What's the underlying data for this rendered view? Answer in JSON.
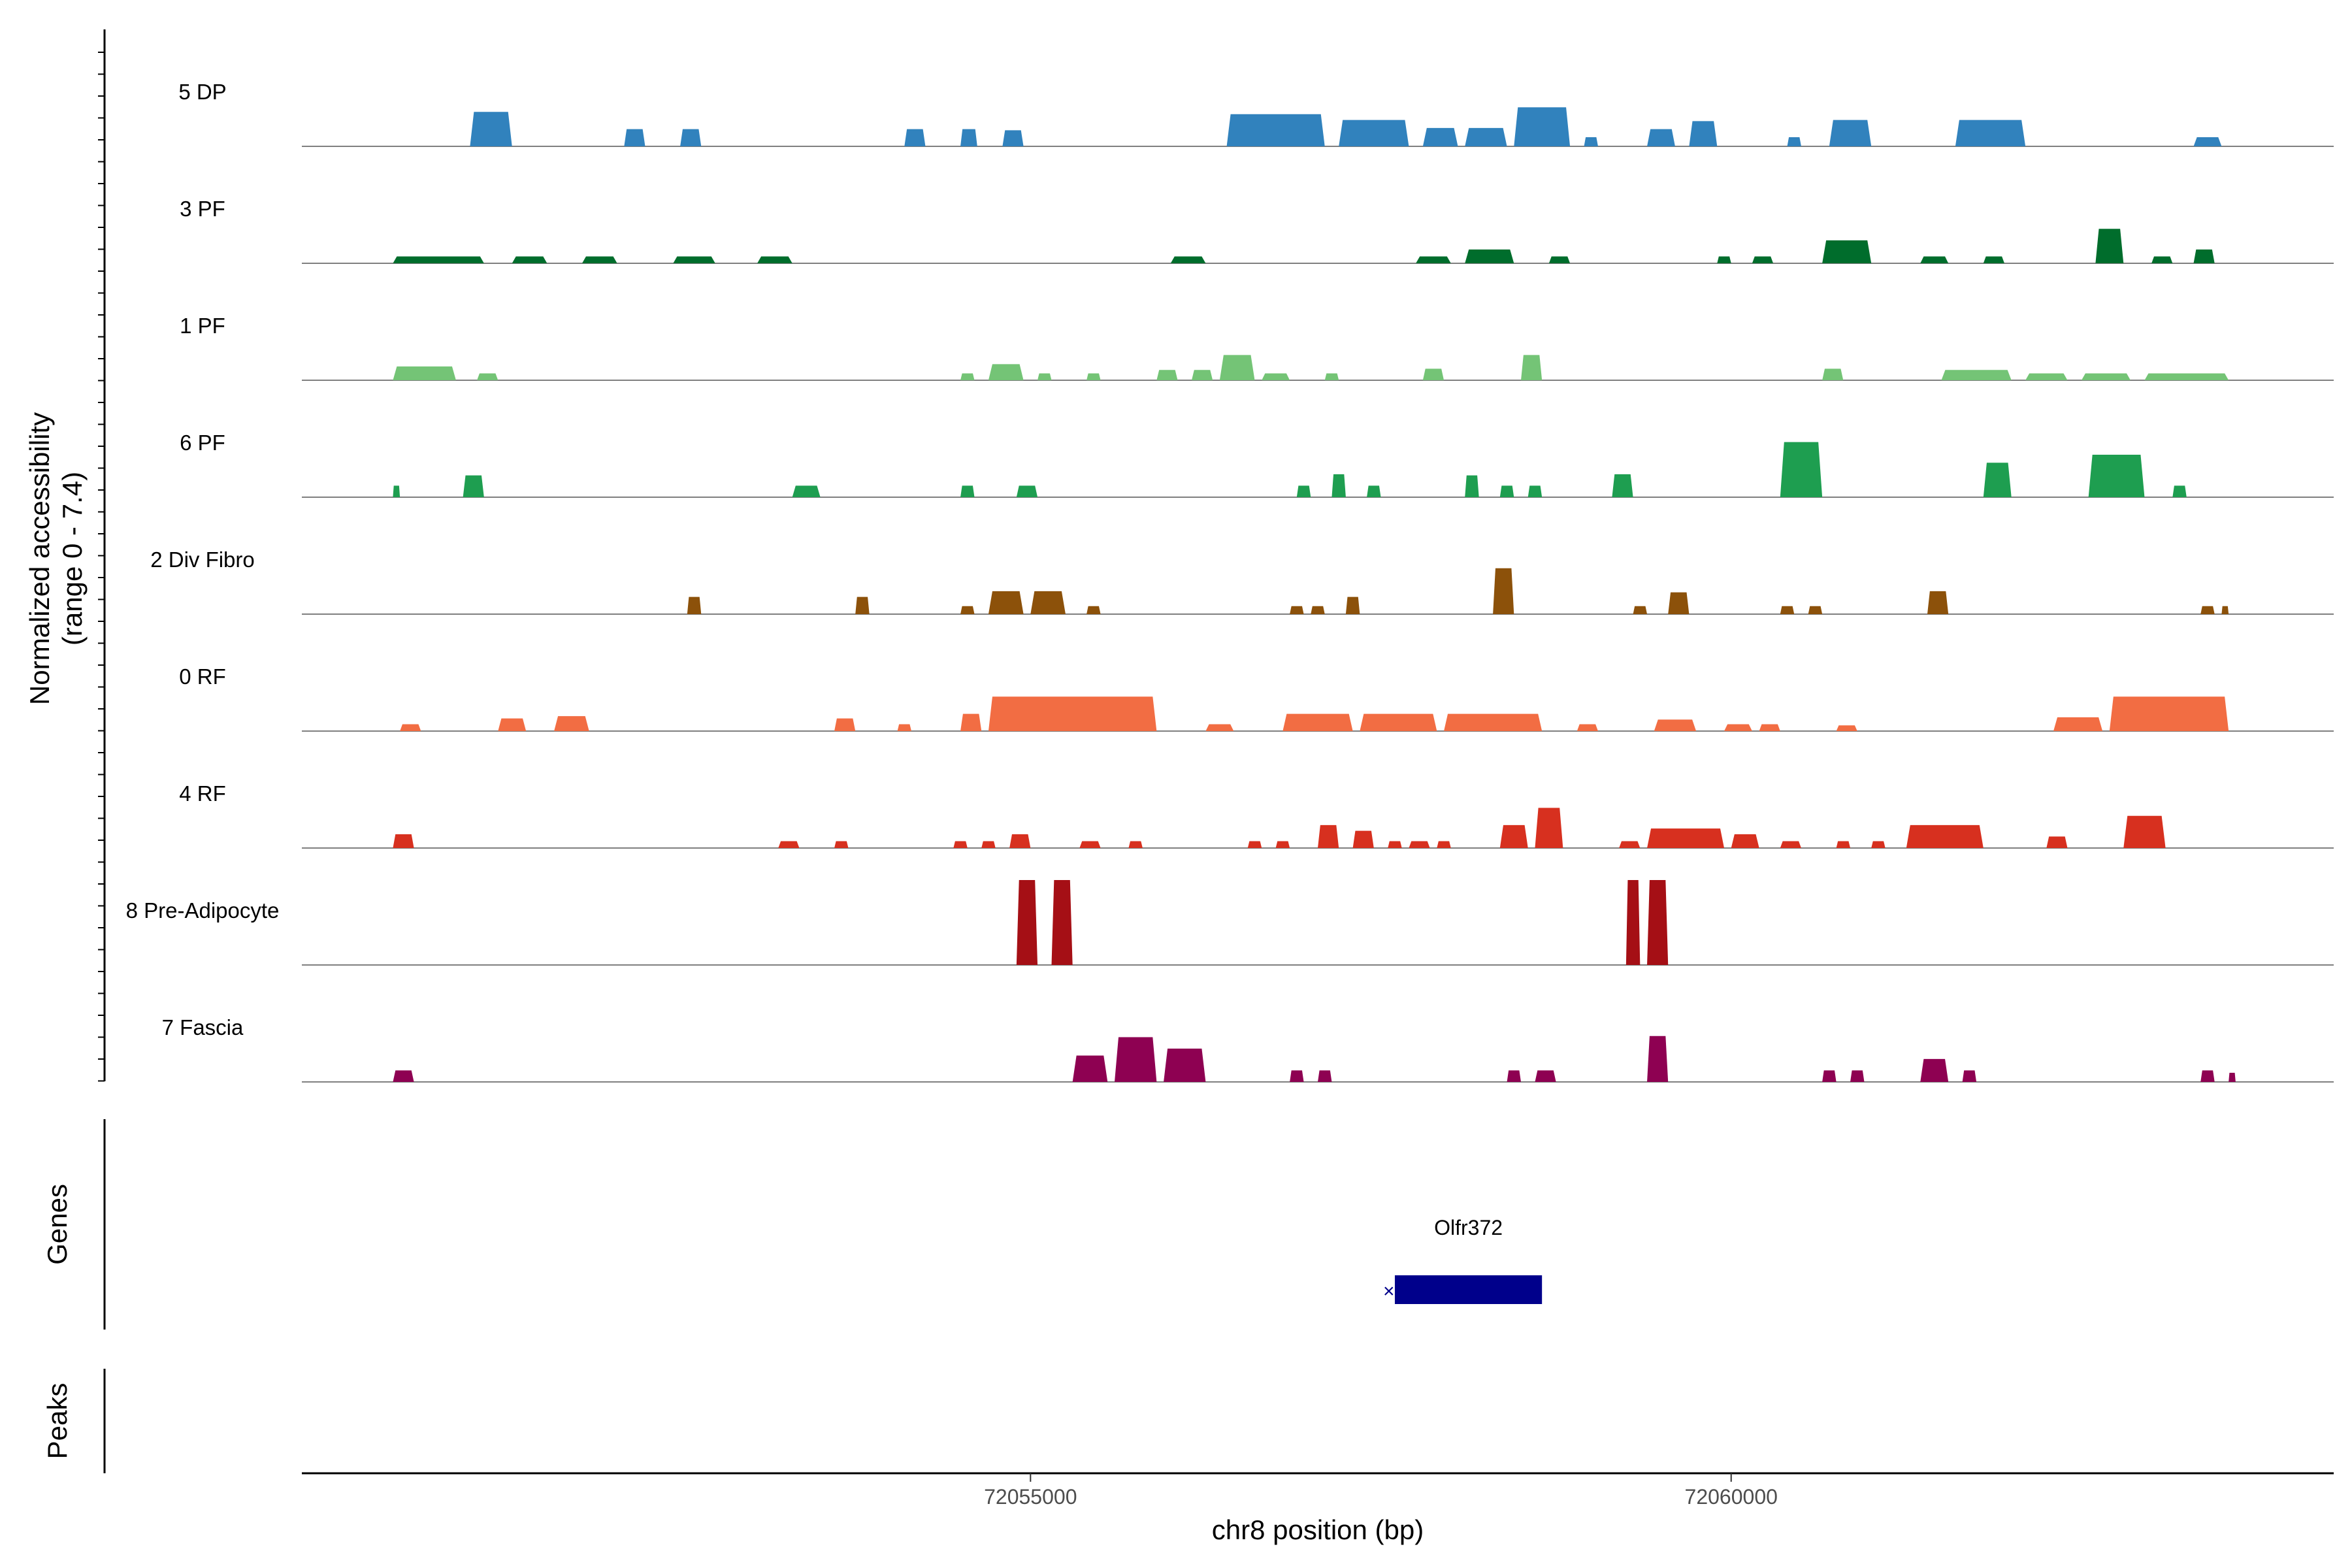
{
  "chart_data": {
    "type": "area",
    "title": "",
    "ylabel": "Normalized accessibility\n(range 0 - 7.4)",
    "xlabel": "chr8 position (bp)",
    "xlim": [
      72049800,
      72064300
    ],
    "ylim": [
      0,
      7.4
    ],
    "x_ticks": [
      72055000,
      72060000
    ],
    "x_tick_labels": [
      "72055000",
      "72060000"
    ],
    "tracks": [
      {
        "name": "5 DP",
        "color": "#3182bd",
        "peaks": [
          [
            72051000,
            72051300,
            3.0
          ],
          [
            72052100,
            72052250,
            1.5
          ],
          [
            72052500,
            72052650,
            1.5
          ],
          [
            72054100,
            72054250,
            1.5
          ],
          [
            72054500,
            72054620,
            1.5
          ],
          [
            72054800,
            72054950,
            1.4
          ],
          [
            72056400,
            72057100,
            2.8
          ],
          [
            72057200,
            72057700,
            2.3
          ],
          [
            72057800,
            72058050,
            1.6
          ],
          [
            72058100,
            72058400,
            1.6
          ],
          [
            72058450,
            72058850,
            3.4
          ],
          [
            72058950,
            72059050,
            0.8
          ],
          [
            72059400,
            72059600,
            1.5
          ],
          [
            72059700,
            72059900,
            2.2
          ],
          [
            72060400,
            72060500,
            0.8
          ],
          [
            72060700,
            72061000,
            2.3
          ],
          [
            72061600,
            72062100,
            2.3
          ],
          [
            72063300,
            72063500,
            0.8
          ]
        ]
      },
      {
        "name": "3 PF",
        "color": "#006d2c",
        "peaks": [
          [
            72050450,
            72051100,
            0.6
          ],
          [
            72051300,
            72051550,
            0.6
          ],
          [
            72051800,
            72052050,
            0.6
          ],
          [
            72052450,
            72052750,
            0.6
          ],
          [
            72053050,
            72053300,
            0.6
          ],
          [
            72056000,
            72056250,
            0.6
          ],
          [
            72057750,
            72058000,
            0.6
          ],
          [
            72058100,
            72058450,
            1.2
          ],
          [
            72058700,
            72058850,
            0.6
          ],
          [
            72059900,
            72060000,
            0.6
          ],
          [
            72060150,
            72060300,
            0.6
          ],
          [
            72060650,
            72061000,
            2.0
          ],
          [
            72061350,
            72061550,
            0.6
          ],
          [
            72061800,
            72061950,
            0.6
          ],
          [
            72062600,
            72062800,
            3.0
          ],
          [
            72063000,
            72063150,
            0.6
          ],
          [
            72063300,
            72063450,
            1.2
          ]
        ]
      },
      {
        "name": "1 PF",
        "color": "#74c476",
        "peaks": [
          [
            72050450,
            72050900,
            1.2
          ],
          [
            72051050,
            72051200,
            0.6
          ],
          [
            72054500,
            72054600,
            0.6
          ],
          [
            72054700,
            72054950,
            1.4
          ],
          [
            72055050,
            72055150,
            0.6
          ],
          [
            72055400,
            72055500,
            0.6
          ],
          [
            72055900,
            72056050,
            0.9
          ],
          [
            72056150,
            72056300,
            0.9
          ],
          [
            72056350,
            72056600,
            2.2
          ],
          [
            72056650,
            72056850,
            0.6
          ],
          [
            72057100,
            72057200,
            0.6
          ],
          [
            72057800,
            72057950,
            1.0
          ],
          [
            72058500,
            72058650,
            2.2
          ],
          [
            72060650,
            72060800,
            1.0
          ],
          [
            72061500,
            72062000,
            0.9
          ],
          [
            72062100,
            72062400,
            0.6
          ],
          [
            72062500,
            72062850,
            0.6
          ],
          [
            72062950,
            72063550,
            0.6
          ]
        ]
      },
      {
        "name": "6 PF",
        "color": "#1e9e50",
        "peaks": [
          [
            72050450,
            72050500,
            1.0
          ],
          [
            72050950,
            72051100,
            1.9
          ],
          [
            72053300,
            72053500,
            1.0
          ],
          [
            72054500,
            72054600,
            1.0
          ],
          [
            72054900,
            72055050,
            1.0
          ],
          [
            72056900,
            72057000,
            1.0
          ],
          [
            72057150,
            72057250,
            2.0
          ],
          [
            72057400,
            72057500,
            1.0
          ],
          [
            72058100,
            72058200,
            1.9
          ],
          [
            72058350,
            72058450,
            1.0
          ],
          [
            72058550,
            72058650,
            1.0
          ],
          [
            72059150,
            72059300,
            2.0
          ],
          [
            72060350,
            72060650,
            4.8
          ],
          [
            72061800,
            72062000,
            3.0
          ],
          [
            72062550,
            72062950,
            3.7
          ],
          [
            72063150,
            72063250,
            1.0
          ]
        ]
      },
      {
        "name": "2 Div Fibro",
        "color": "#8c510a",
        "peaks": [
          [
            72052550,
            72052650,
            1.5
          ],
          [
            72053750,
            72053850,
            1.5
          ],
          [
            72054500,
            72054600,
            0.7
          ],
          [
            72054700,
            72054950,
            2.0
          ],
          [
            72055000,
            72055250,
            2.0
          ],
          [
            72055400,
            72055500,
            0.7
          ],
          [
            72056850,
            72056950,
            0.7
          ],
          [
            72057000,
            72057100,
            0.7
          ],
          [
            72057250,
            72057350,
            1.5
          ],
          [
            72058300,
            72058450,
            4.0
          ],
          [
            72059300,
            72059400,
            0.7
          ],
          [
            72059550,
            72059700,
            1.9
          ],
          [
            72060350,
            72060450,
            0.7
          ],
          [
            72060550,
            72060650,
            0.7
          ],
          [
            72061400,
            72061550,
            2.0
          ],
          [
            72063350,
            72063450,
            0.7
          ],
          [
            72063500,
            72063550,
            0.7
          ]
        ]
      },
      {
        "name": "0 RF",
        "color": "#f26d43",
        "peaks": [
          [
            72050500,
            72050650,
            0.6
          ],
          [
            72051200,
            72051400,
            1.1
          ],
          [
            72051600,
            72051850,
            1.3
          ],
          [
            72053600,
            72053750,
            1.1
          ],
          [
            72054050,
            72054150,
            0.6
          ],
          [
            72054500,
            72054650,
            1.5
          ],
          [
            72054700,
            72055900,
            3.0
          ],
          [
            72056250,
            72056450,
            0.6
          ],
          [
            72056800,
            72057300,
            1.5
          ],
          [
            72057350,
            72057900,
            1.5
          ],
          [
            72057950,
            72058650,
            1.5
          ],
          [
            72058900,
            72059050,
            0.6
          ],
          [
            72059450,
            72059750,
            1.0
          ],
          [
            72059950,
            72060150,
            0.6
          ],
          [
            72060200,
            72060350,
            0.6
          ],
          [
            72060750,
            72060900,
            0.5
          ],
          [
            72062300,
            72062650,
            1.2
          ],
          [
            72062700,
            72063550,
            3.0
          ]
        ]
      },
      {
        "name": "4 RF",
        "color": "#d7301f",
        "peaks": [
          [
            72050450,
            72050600,
            1.2
          ],
          [
            72053200,
            72053350,
            0.6
          ],
          [
            72053600,
            72053700,
            0.6
          ],
          [
            72054450,
            72054550,
            0.6
          ],
          [
            72054650,
            72054750,
            0.6
          ],
          [
            72054850,
            72055000,
            1.2
          ],
          [
            72055350,
            72055500,
            0.6
          ],
          [
            72055700,
            72055800,
            0.6
          ],
          [
            72056550,
            72056650,
            0.6
          ],
          [
            72056750,
            72056850,
            0.6
          ],
          [
            72057050,
            72057200,
            2.0
          ],
          [
            72057300,
            72057450,
            1.5
          ],
          [
            72057550,
            72057650,
            0.6
          ],
          [
            72057700,
            72057850,
            0.6
          ],
          [
            72057900,
            72058000,
            0.6
          ],
          [
            72058350,
            72058550,
            2.0
          ],
          [
            72058600,
            72058800,
            3.5
          ],
          [
            72059200,
            72059350,
            0.6
          ],
          [
            72059400,
            72059950,
            1.7
          ],
          [
            72060000,
            72060200,
            1.2
          ],
          [
            72060350,
            72060500,
            0.6
          ],
          [
            72060750,
            72060850,
            0.6
          ],
          [
            72061000,
            72061100,
            0.6
          ],
          [
            72061250,
            72061800,
            2.0
          ],
          [
            72062250,
            72062400,
            1.0
          ],
          [
            72062800,
            72063100,
            2.8
          ]
        ]
      },
      {
        "name": "8 Pre-Adipocyte",
        "color": "#a50f15",
        "peaks": [
          [
            72054900,
            72055050,
            7.4
          ],
          [
            72055150,
            72055300,
            7.4
          ],
          [
            72059250,
            72059350,
            7.4
          ],
          [
            72059400,
            72059550,
            7.4
          ]
        ]
      },
      {
        "name": "7 Fascia",
        "color": "#8e0152",
        "peaks": [
          [
            72050450,
            72050600,
            1.0
          ],
          [
            72055300,
            72055550,
            2.3
          ],
          [
            72055600,
            72055900,
            3.9
          ],
          [
            72055950,
            72056250,
            2.9
          ],
          [
            72056850,
            72056950,
            1.0
          ],
          [
            72057050,
            72057150,
            1.0
          ],
          [
            72058400,
            72058500,
            1.0
          ],
          [
            72058600,
            72058750,
            1.0
          ],
          [
            72059400,
            72059550,
            4.0
          ],
          [
            72060650,
            72060750,
            1.0
          ],
          [
            72060850,
            72060950,
            1.0
          ],
          [
            72061350,
            72061550,
            2.0
          ],
          [
            72061650,
            72061750,
            1.0
          ],
          [
            72063350,
            72063450,
            1.0
          ],
          [
            72063550,
            72063600,
            0.8
          ]
        ]
      }
    ],
    "genes": [
      {
        "name": "Olfr372",
        "start": 72057600,
        "end": 72058650,
        "strand": "-",
        "color": "#00008b"
      }
    ],
    "peaks_track": []
  },
  "labels": {
    "ylabel_line1": "Normalized accessibility",
    "ylabel_line2": "(range 0 - 7.4)",
    "genes_title": "Genes",
    "peaks_title": "Peaks",
    "xlabel": "chr8 position (bp)"
  }
}
